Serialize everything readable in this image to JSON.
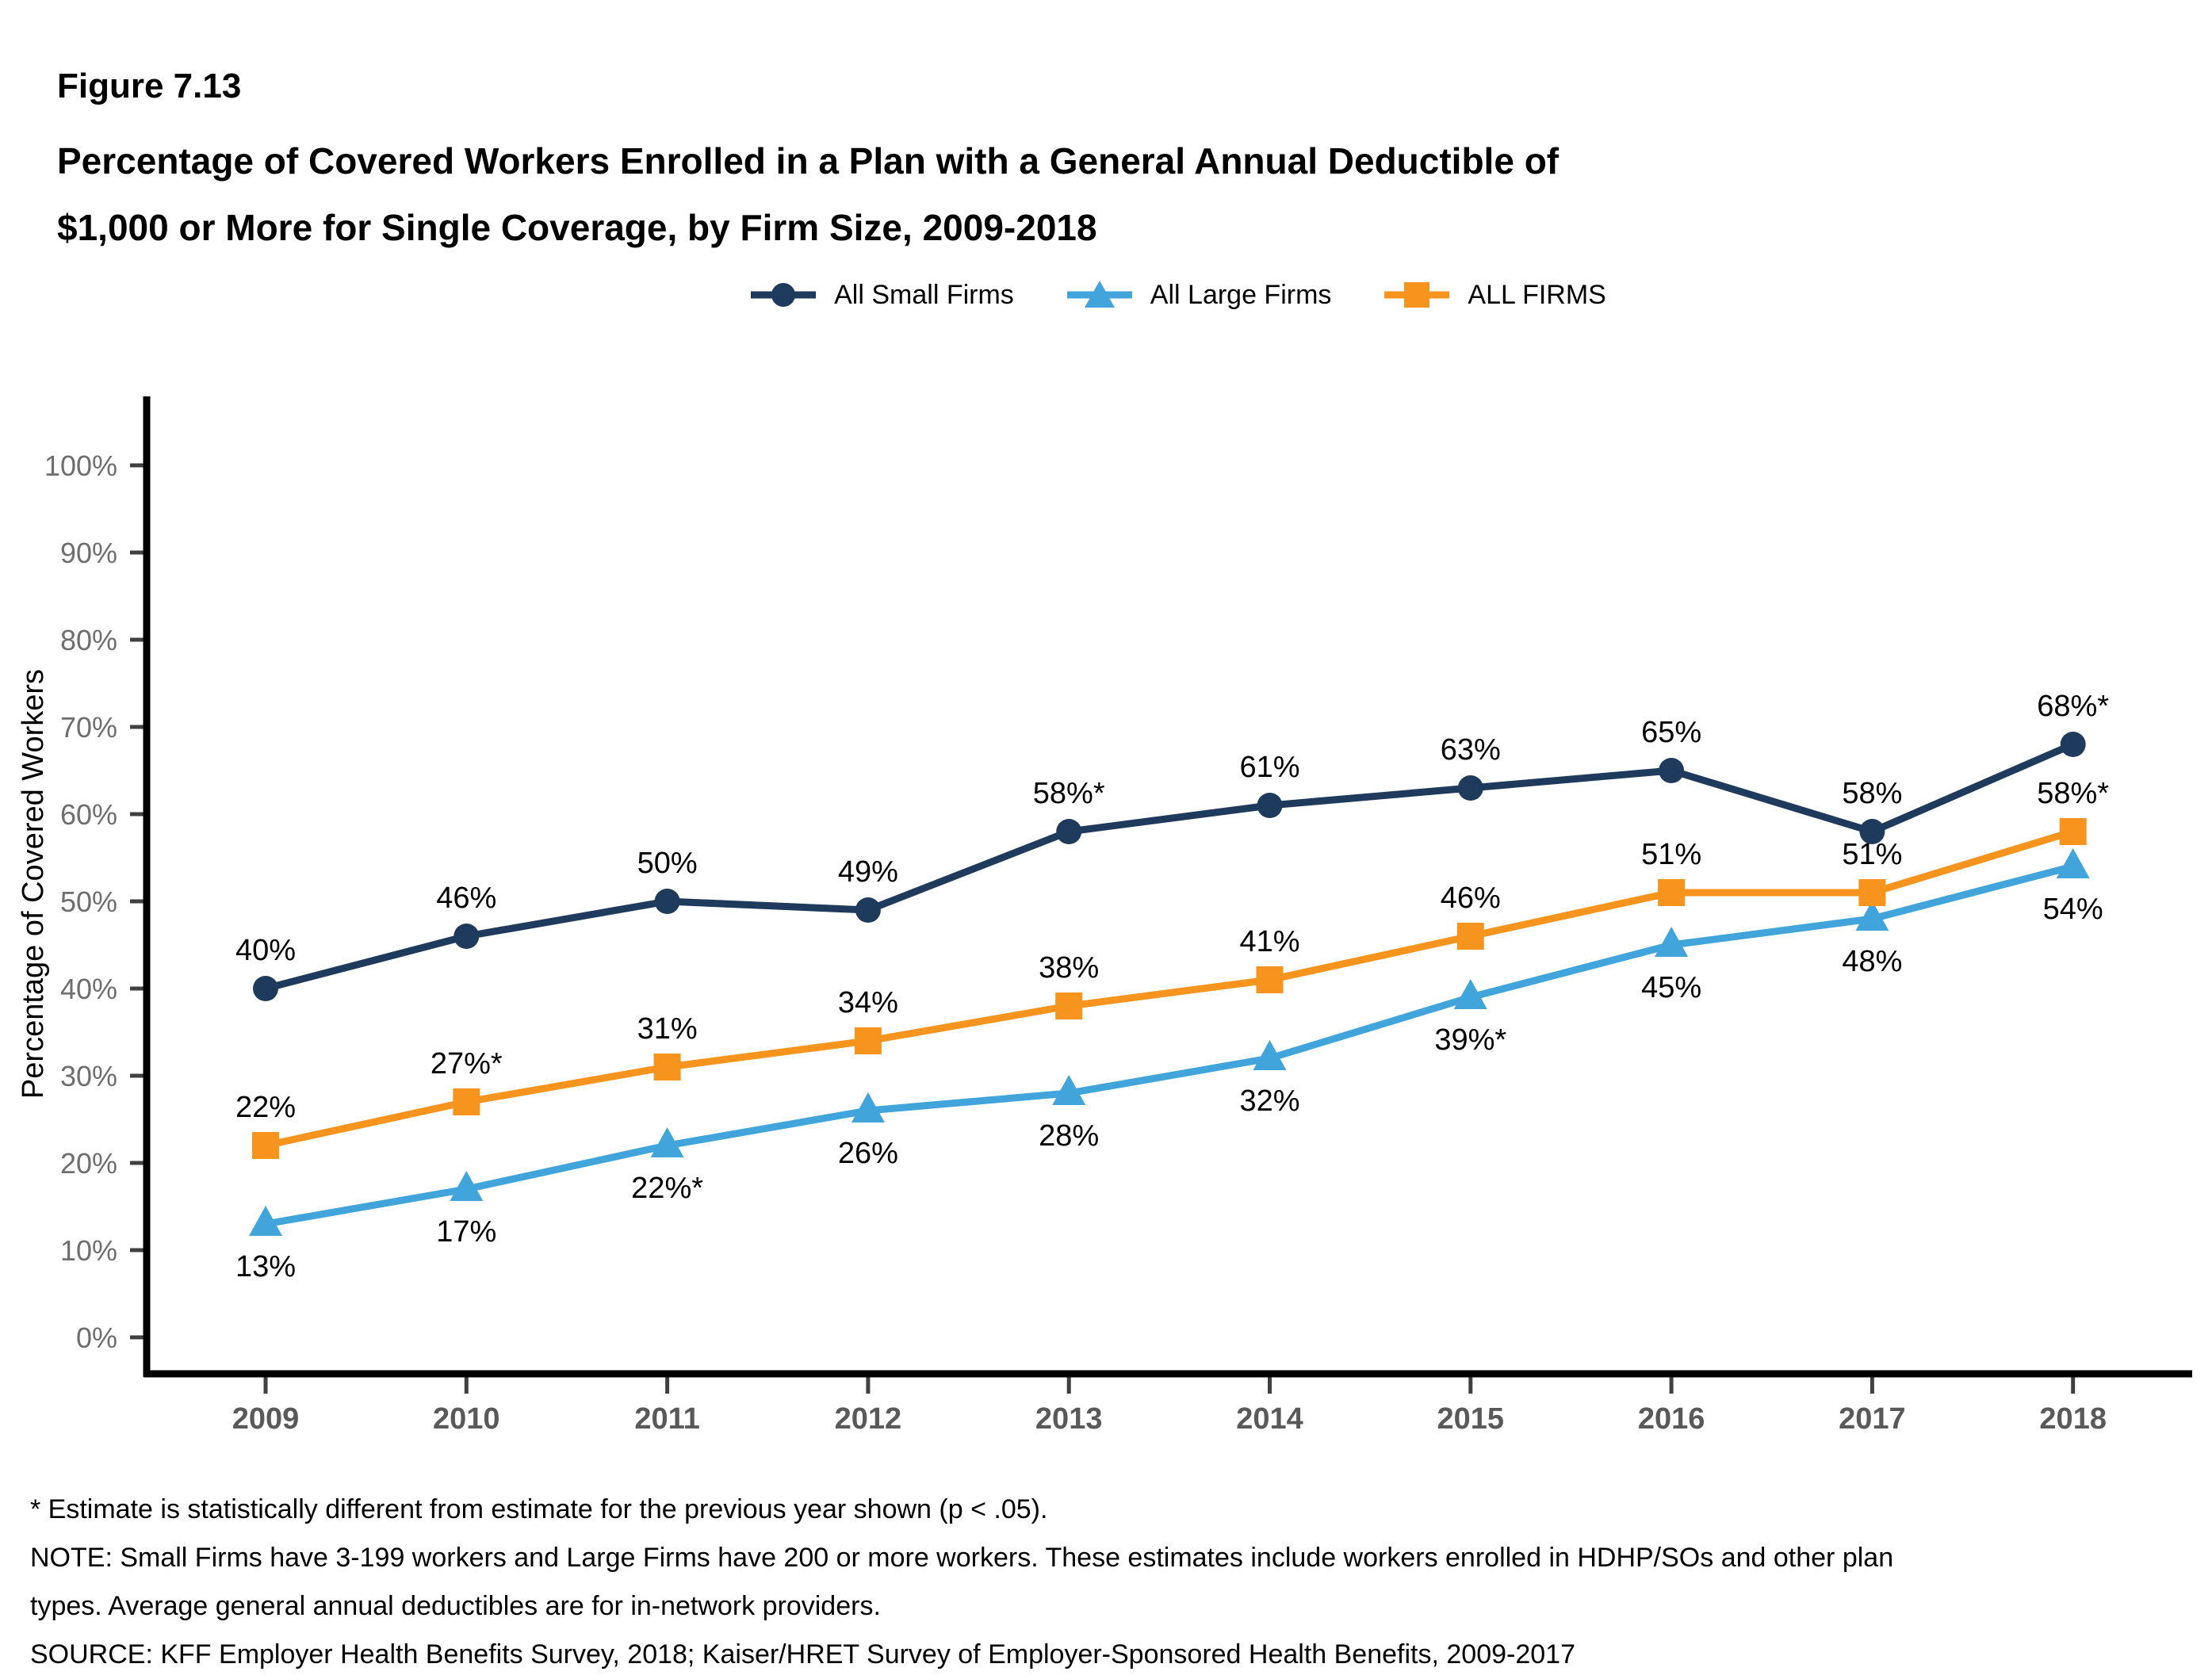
{
  "figure": {
    "label": "Figure 7.13",
    "title_line1": "Percentage of Covered Workers Enrolled in a Plan with a General Annual Deductible of",
    "title_line2": "$1,000 or More for Single Coverage, by Firm Size, 2009-2018"
  },
  "legend": [
    {
      "name": "All Small Firms",
      "color": "#1E3A5C",
      "marker": "circle"
    },
    {
      "name": "All Large Firms",
      "color": "#41A5DC",
      "marker": "triangle"
    },
    {
      "name": "ALL FIRMS",
      "color": "#F7941E",
      "marker": "square"
    }
  ],
  "chart_data": {
    "type": "line",
    "categories": [
      "2009",
      "2010",
      "2011",
      "2012",
      "2013",
      "2014",
      "2015",
      "2016",
      "2017",
      "2018"
    ],
    "series": [
      {
        "name": "All Small Firms",
        "color": "#1E3A5C",
        "marker": "circle",
        "label_position": "above",
        "values": [
          40,
          46,
          50,
          49,
          58,
          61,
          63,
          65,
          58,
          68
        ],
        "labels": [
          "40%",
          "46%",
          "50%",
          "49%",
          "58%*",
          "61%",
          "63%",
          "65%",
          "58%",
          "68%*"
        ]
      },
      {
        "name": "All Large Firms",
        "color": "#41A5DC",
        "marker": "triangle",
        "label_position": "below",
        "values": [
          13,
          17,
          22,
          26,
          28,
          32,
          39,
          45,
          48,
          54
        ],
        "labels": [
          "13%",
          "17%",
          "22%*",
          "26%",
          "28%",
          "32%",
          "39%*",
          "45%",
          "48%",
          "54%"
        ]
      },
      {
        "name": "ALL FIRMS",
        "color": "#F7941E",
        "marker": "square",
        "label_position": "above",
        "values": [
          22,
          27,
          31,
          34,
          38,
          41,
          46,
          51,
          51,
          58
        ],
        "labels": [
          "22%",
          "27%*",
          "31%",
          "34%",
          "38%",
          "41%",
          "46%",
          "51%",
          "51%",
          "58%*"
        ]
      }
    ],
    "title": "Percentage of Covered Workers Enrolled in a Plan with a General Annual Deductible of $1,000 or More for Single Coverage, by Firm Size, 2009-2018",
    "xlabel": "",
    "ylabel": "Percentage of Covered Workers",
    "ylim": [
      0,
      100
    ],
    "ytick_step": 10,
    "ytick_suffix": "%",
    "grid": false,
    "legend_position": "top"
  },
  "footnotes": {
    "lines": [
      "* Estimate is statistically different from estimate for the previous year shown (p < .05).",
      "NOTE: Small Firms have 3-199 workers and Large Firms have 200 or more workers. These estimates include workers enrolled in HDHP/SOs and other plan",
      "types. Average general annual deductibles are for in-network providers.",
      "SOURCE: KFF Employer Health Benefits Survey, 2018; Kaiser/HRET Survey of Employer-Sponsored Health Benefits, 2009-2017"
    ]
  },
  "colors": {
    "small_firms": "#1E3A5C",
    "large_firms": "#41A5DC",
    "all_firms": "#F7941E",
    "axis": "#000000",
    "tick": "#404040",
    "ytick_label": "#6e6e6e",
    "xtick_label": "#595959",
    "background": "#ffffff"
  }
}
